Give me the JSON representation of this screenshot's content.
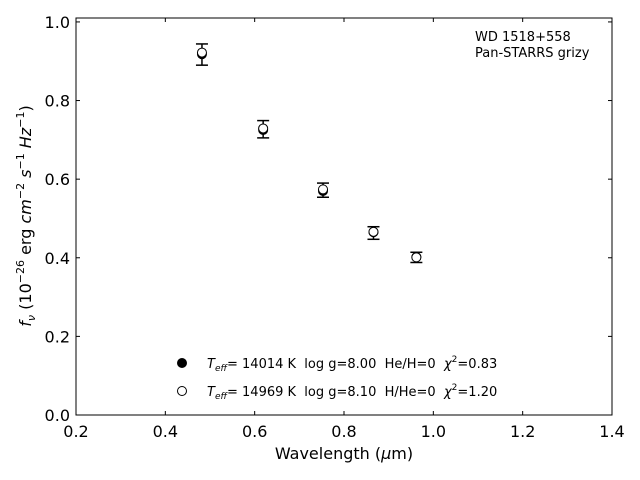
{
  "chart_data": {
    "type": "scatter",
    "xlabel": "Wavelength (μm)",
    "ylabel": "fν (10−26 erg cm−2 s−1 Hz−1)",
    "xlim": [
      0.2,
      1.4
    ],
    "ylim": [
      0.0,
      1.01
    ],
    "x_ticks": [
      "0.2",
      "0.4",
      "0.6",
      "0.8",
      "1.0",
      "1.2",
      "1.4"
    ],
    "y_ticks": [
      "0.0",
      "0.2",
      "0.4",
      "0.6",
      "0.8",
      "1.0"
    ],
    "annotation": [
      "WD 1518+558",
      "Pan-STARRS grizy"
    ],
    "grid": false,
    "legend_placement": "bottom-center",
    "observed": {
      "x": [
        0.482,
        0.619,
        0.753,
        0.866,
        0.962
      ],
      "y": [
        0.917,
        0.727,
        0.572,
        0.463,
        0.401
      ],
      "err": [
        0.027,
        0.022,
        0.018,
        0.016,
        0.013
      ]
    },
    "series": [
      {
        "name": "Teff= 14014 K  log g=8.00  He/H=0  χ2=0.83",
        "marker": "filled",
        "x": [
          0.482,
          0.619,
          0.753,
          0.866,
          0.962
        ],
        "y": [
          0.918,
          0.725,
          0.57,
          0.465,
          0.402
        ]
      },
      {
        "name": "Teff= 14969 K  log g=8.10  H/He=0  χ2=1.20",
        "marker": "open",
        "x": [
          0.482,
          0.619,
          0.753,
          0.866,
          0.962
        ],
        "y": [
          0.922,
          0.729,
          0.574,
          0.466,
          0.401
        ]
      }
    ],
    "legend": [
      {
        "marker": "filled",
        "t_text": "T",
        "t_sub": "eff",
        "mid_text": "= 14014 K  log g=8.00  He/H=0  ",
        "chi_text": "χ",
        "chi_sup": "2",
        "end_text": "=0.83"
      },
      {
        "marker": "open",
        "t_text": "T",
        "t_sub": "eff",
        "mid_text": "= 14969 K  log g=8.10  H/He=0  ",
        "chi_text": "χ",
        "chi_sup": "2",
        "end_text": "=1.20"
      }
    ],
    "xlabel_parts": {
      "pre": "Wavelength (",
      "mu": "μ",
      "post": "m)"
    },
    "ylabel_parts": {
      "f": "f",
      "nu": "ν",
      "open": " (10",
      "exp1": "−26",
      "erg": " erg ",
      "cm": "cm",
      "exp2": "−2",
      "s": " s",
      "exp3": "−1",
      "hz": " Hz",
      "exp4": "−1",
      "close": ")"
    }
  }
}
